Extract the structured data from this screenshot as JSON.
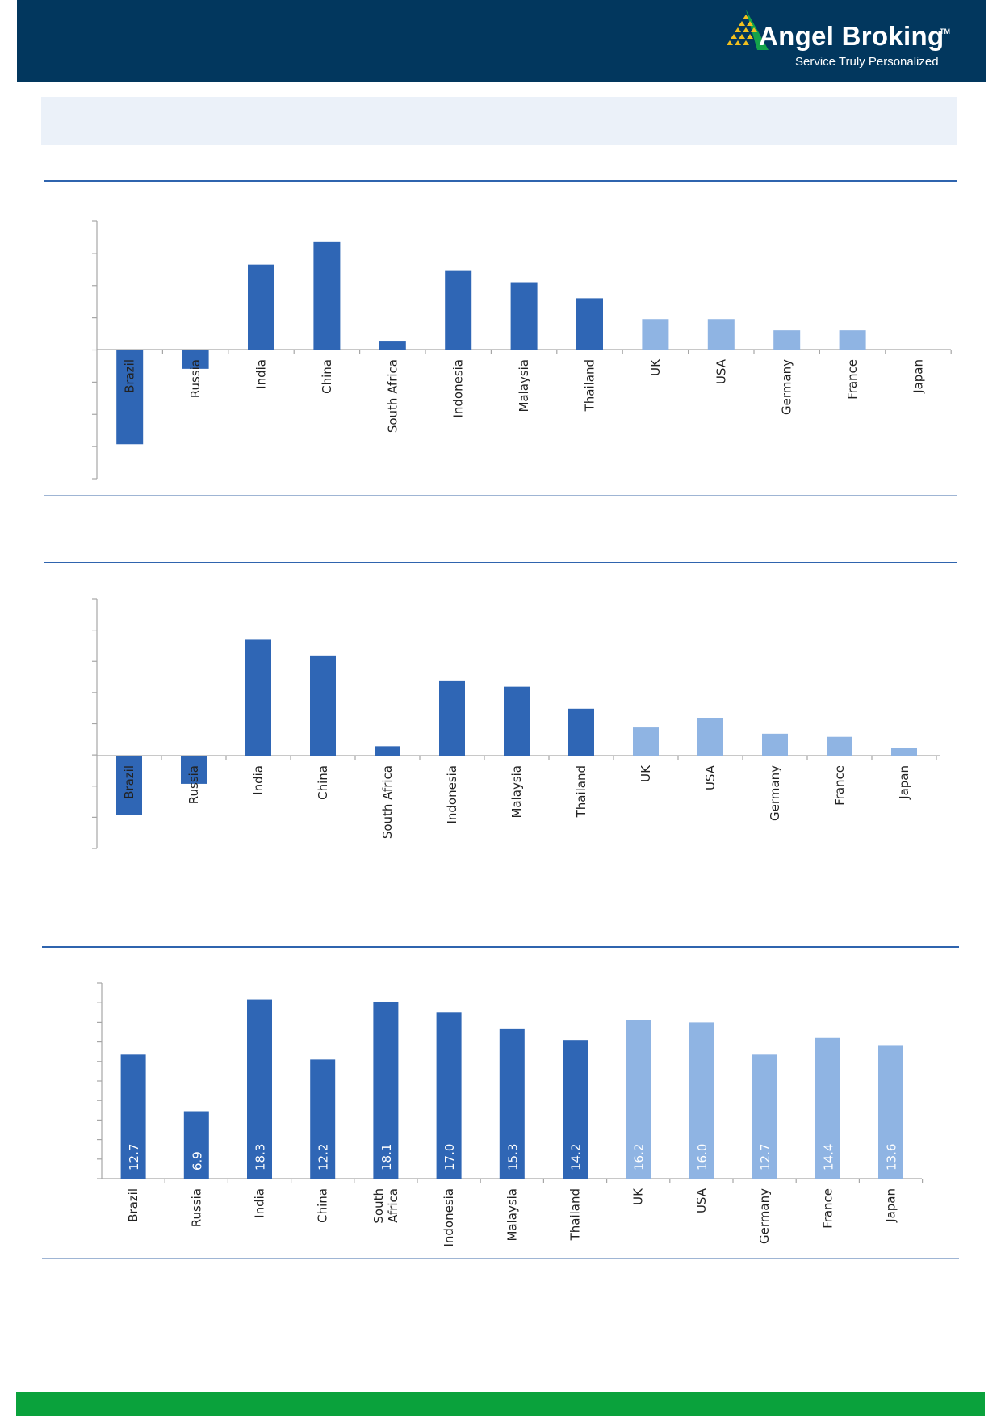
{
  "header": {
    "brand_name": "Angel Broking",
    "trademark": "TM",
    "tagline": "Service Truly Personalized",
    "logo_icon": "triangle-pyramid-logo-icon",
    "colors": {
      "header_bg": "#02375e",
      "logo_green": "#14a34a",
      "logo_yellow": "#f2c01e",
      "footer_bg": "#0aa23c"
    }
  },
  "palette": {
    "emerging": "#2f66b5",
    "developed": "#8fb4e3",
    "axis": "#a6a6a6"
  },
  "chart_data": [
    {
      "type": "bar",
      "categories": [
        "Brazil",
        "Russia",
        "India",
        "China",
        "South Africa",
        "Indonesia",
        "Malaysia",
        "Thailand",
        "UK",
        "USA",
        "Germany",
        "France",
        "Japan"
      ],
      "values": [
        -5.9,
        -1.2,
        5.3,
        6.7,
        0.5,
        4.9,
        4.2,
        3.2,
        1.9,
        1.9,
        1.2,
        1.2,
        0
      ],
      "ylim": [
        -8,
        8
      ],
      "grid": false,
      "groups": [
        "emerging",
        "emerging",
        "emerging",
        "emerging",
        "emerging",
        "emerging",
        "emerging",
        "emerging",
        "developed",
        "developed",
        "developed",
        "developed",
        "developed"
      ]
    },
    {
      "type": "bar",
      "categories": [
        "Brazil",
        "Russia",
        "India",
        "China",
        "South Africa",
        "Indonesia",
        "Malaysia",
        "Thailand",
        "UK",
        "USA",
        "Germany",
        "France",
        "Japan"
      ],
      "values": [
        -1.9,
        -0.9,
        3.7,
        3.2,
        0.3,
        2.4,
        2.2,
        1.5,
        0.9,
        1.2,
        0.7,
        0.6,
        0.25
      ],
      "ylim": [
        -3,
        5
      ],
      "grid": false,
      "groups": [
        "emerging",
        "emerging",
        "emerging",
        "emerging",
        "emerging",
        "emerging",
        "emerging",
        "emerging",
        "developed",
        "developed",
        "developed",
        "developed",
        "developed"
      ]
    },
    {
      "type": "bar",
      "categories": [
        "Brazil",
        "Russia",
        "India",
        "China",
        "South Africa",
        "Indonesia",
        "Malaysia",
        "Thailand",
        "UK",
        "USA",
        "Germany",
        "France",
        "Japan"
      ],
      "values": [
        12.7,
        6.9,
        18.3,
        12.2,
        18.1,
        17.0,
        15.3,
        14.2,
        16.2,
        16.0,
        12.7,
        14.4,
        13.6
      ],
      "value_labels": [
        "12.7",
        "6.9",
        "18.3",
        "12.2",
        "18.1",
        "17.0",
        "15.3",
        "14.2",
        "16.2",
        "16.0",
        "12.7",
        "14.4",
        "13.6"
      ],
      "ylim": [
        0,
        20
      ],
      "grid": false,
      "groups": [
        "emerging",
        "emerging",
        "emerging",
        "emerging",
        "emerging",
        "emerging",
        "emerging",
        "emerging",
        "developed",
        "developed",
        "developed",
        "developed",
        "developed"
      ]
    }
  ]
}
